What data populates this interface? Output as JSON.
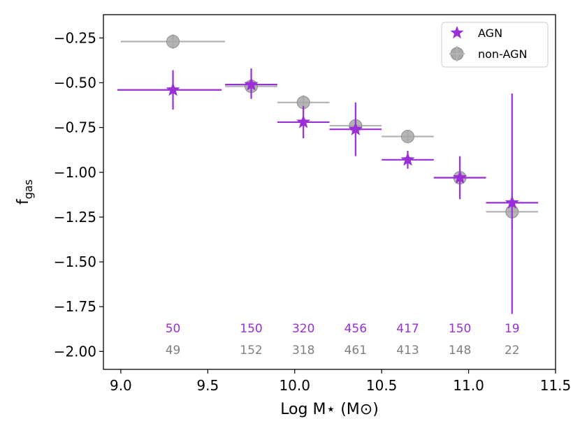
{
  "chart_data": {
    "type": "scatter",
    "title": "",
    "xlabel": "Log M⋆ (M⊙)",
    "ylabel": "f",
    "ylabel_sub": "gas",
    "xlim": [
      8.9,
      11.5
    ],
    "ylim": [
      -2.1,
      -0.12
    ],
    "xticks": [
      9.0,
      9.5,
      10.0,
      10.5,
      11.0,
      11.5
    ],
    "xtick_labels": [
      "9.0",
      "9.5",
      "10.0",
      "10.5",
      "11.0",
      "11.5"
    ],
    "yticks": [
      -0.25,
      -0.5,
      -0.75,
      -1.0,
      -1.25,
      -1.5,
      -1.75,
      -2.0
    ],
    "ytick_labels": [
      "−0.25",
      "−0.50",
      "−0.75",
      "−1.00",
      "−1.25",
      "−1.50",
      "−1.75",
      "−2.00"
    ],
    "legend_position": "top-right",
    "series": [
      {
        "name": "non-AGN",
        "marker": "circle-plus",
        "color": "#b4b4b4",
        "points": [
          {
            "x": 9.3,
            "y": -0.27,
            "xerr_low": 9.0,
            "xerr_high": 9.6,
            "yerr_low": -0.31,
            "yerr_high": -0.23
          },
          {
            "x": 9.75,
            "y": -0.52,
            "xerr_low": 9.6,
            "xerr_high": 9.9,
            "yerr_low": -0.56,
            "yerr_high": -0.48
          },
          {
            "x": 10.05,
            "y": -0.61,
            "xerr_low": 9.9,
            "xerr_high": 10.2,
            "yerr_low": -0.65,
            "yerr_high": -0.57
          },
          {
            "x": 10.35,
            "y": -0.74,
            "xerr_low": 10.2,
            "xerr_high": 10.5,
            "yerr_low": -0.78,
            "yerr_high": -0.7
          },
          {
            "x": 10.65,
            "y": -0.8,
            "xerr_low": 10.5,
            "xerr_high": 10.8,
            "yerr_low": -0.83,
            "yerr_high": -0.77
          },
          {
            "x": 10.95,
            "y": -1.03,
            "xerr_low": 10.8,
            "xerr_high": 11.1,
            "yerr_low": -1.07,
            "yerr_high": -0.99
          },
          {
            "x": 11.25,
            "y": -1.22,
            "xerr_low": 11.1,
            "xerr_high": 11.4,
            "yerr_low": -1.32,
            "yerr_high": -1.12
          }
        ],
        "counts": [
          "49",
          "152",
          "318",
          "461",
          "413",
          "148",
          "22"
        ],
        "count_color": "#808080"
      },
      {
        "name": "AGN",
        "marker": "star",
        "color": "#9a2ed8",
        "points": [
          {
            "x": 9.3,
            "y": -0.54,
            "xerr_low": 8.98,
            "xerr_high": 9.58,
            "yerr_low": -0.65,
            "yerr_high": -0.43
          },
          {
            "x": 9.75,
            "y": -0.51,
            "xerr_low": 9.6,
            "xerr_high": 9.9,
            "yerr_low": -0.59,
            "yerr_high": -0.42
          },
          {
            "x": 10.05,
            "y": -0.72,
            "xerr_low": 9.9,
            "xerr_high": 10.2,
            "yerr_low": -0.81,
            "yerr_high": -0.63
          },
          {
            "x": 10.35,
            "y": -0.76,
            "xerr_low": 10.2,
            "xerr_high": 10.5,
            "yerr_low": -0.91,
            "yerr_high": -0.61
          },
          {
            "x": 10.65,
            "y": -0.93,
            "xerr_low": 10.5,
            "xerr_high": 10.8,
            "yerr_low": -0.98,
            "yerr_high": -0.88
          },
          {
            "x": 10.95,
            "y": -1.03,
            "xerr_low": 10.8,
            "xerr_high": 11.1,
            "yerr_low": -1.15,
            "yerr_high": -0.91
          },
          {
            "x": 11.25,
            "y": -1.17,
            "xerr_low": 11.1,
            "xerr_high": 11.4,
            "yerr_low": -1.79,
            "yerr_high": -0.56
          }
        ],
        "counts": [
          "50",
          "150",
          "320",
          "456",
          "417",
          "150",
          "19"
        ],
        "count_color": "#9a2ed8"
      }
    ],
    "count_rows_y": {
      "AGN": -1.87,
      "non-AGN": -1.99
    }
  }
}
